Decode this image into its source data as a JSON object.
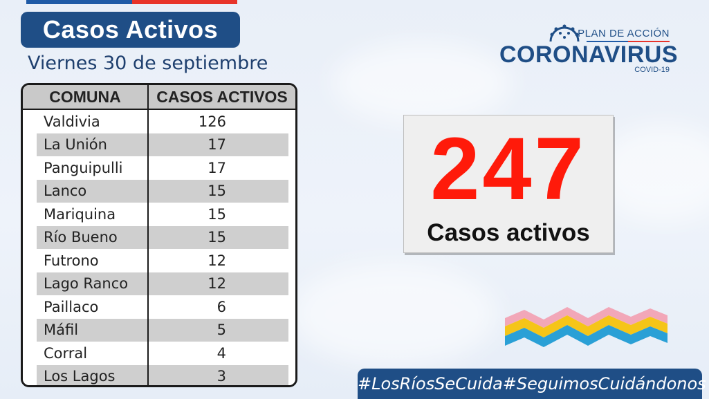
{
  "header": {
    "title": "Casos Activos",
    "date": "Viernes 30 de septiembre"
  },
  "logo": {
    "plan_label": "PLAN DE ACCIÓN",
    "main_label": "CORONAVIRUS",
    "sub_label": "COVID-19",
    "icon": "virus-icon"
  },
  "table": {
    "headers": [
      "COMUNA",
      "CASOS ACTIVOS"
    ],
    "rows": [
      {
        "comuna": "Valdivia",
        "casos": "126"
      },
      {
        "comuna": "La Unión",
        "casos": "17"
      },
      {
        "comuna": "Panguipulli",
        "casos": "17"
      },
      {
        "comuna": "Lanco",
        "casos": "15"
      },
      {
        "comuna": "Mariquina",
        "casos": "15"
      },
      {
        "comuna": "Río Bueno",
        "casos": "15"
      },
      {
        "comuna": "Futrono",
        "casos": "12"
      },
      {
        "comuna": "Lago Ranco",
        "casos": "12"
      },
      {
        "comuna": "Paillaco",
        "casos": "6"
      },
      {
        "comuna": "Máfil",
        "casos": "5"
      },
      {
        "comuna": "Corral",
        "casos": "4"
      },
      {
        "comuna": "Los Lagos",
        "casos": "3"
      }
    ]
  },
  "total": {
    "value": "247",
    "label": "Casos activos"
  },
  "hashtags": [
    "#LosRíosSeCuida",
    "#SeguimosCuidándonos"
  ],
  "colors": {
    "navy": "#1f4e86",
    "red": "#ff1a0a",
    "row_gray": "#cfcfcf",
    "header_gray": "#c9c9c9",
    "deco_pink": "#f2a7b8",
    "deco_yellow": "#f5c518",
    "deco_blue": "#2aa0d6"
  }
}
